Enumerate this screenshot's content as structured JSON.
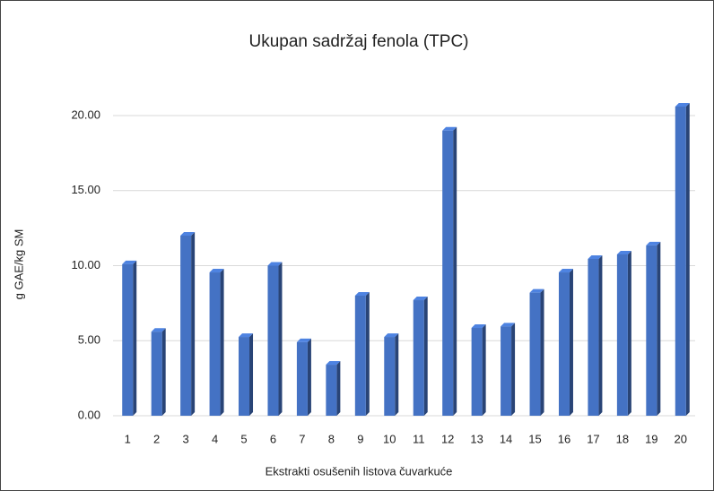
{
  "chart_data": {
    "type": "bar3d",
    "title": "Ukupan sadržaj fenola (TPC)",
    "x_label": "Ekstrakti osušenih listova čuvarkuće",
    "y_label": "g GAE/kg SM",
    "categories": [
      "1",
      "2",
      "3",
      "4",
      "5",
      "6",
      "7",
      "8",
      "9",
      "10",
      "11",
      "12",
      "13",
      "14",
      "15",
      "16",
      "17",
      "18",
      "19",
      "20"
    ],
    "values": [
      10.1,
      5.6,
      12.0,
      9.55,
      5.25,
      10.0,
      4.9,
      3.4,
      8.0,
      5.25,
      7.7,
      19.0,
      5.85,
      5.95,
      8.2,
      9.55,
      10.45,
      10.75,
      11.35,
      20.6
    ],
    "color": "#4472c4",
    "ylim": [
      0,
      22
    ],
    "yticks": [
      {
        "value": 0,
        "label": "0.00"
      },
      {
        "value": 5,
        "label": "5.00"
      },
      {
        "value": 10,
        "label": "10.00"
      },
      {
        "value": 15,
        "label": "15.00"
      },
      {
        "value": 20,
        "label": "20.00"
      }
    ],
    "grid": true
  }
}
